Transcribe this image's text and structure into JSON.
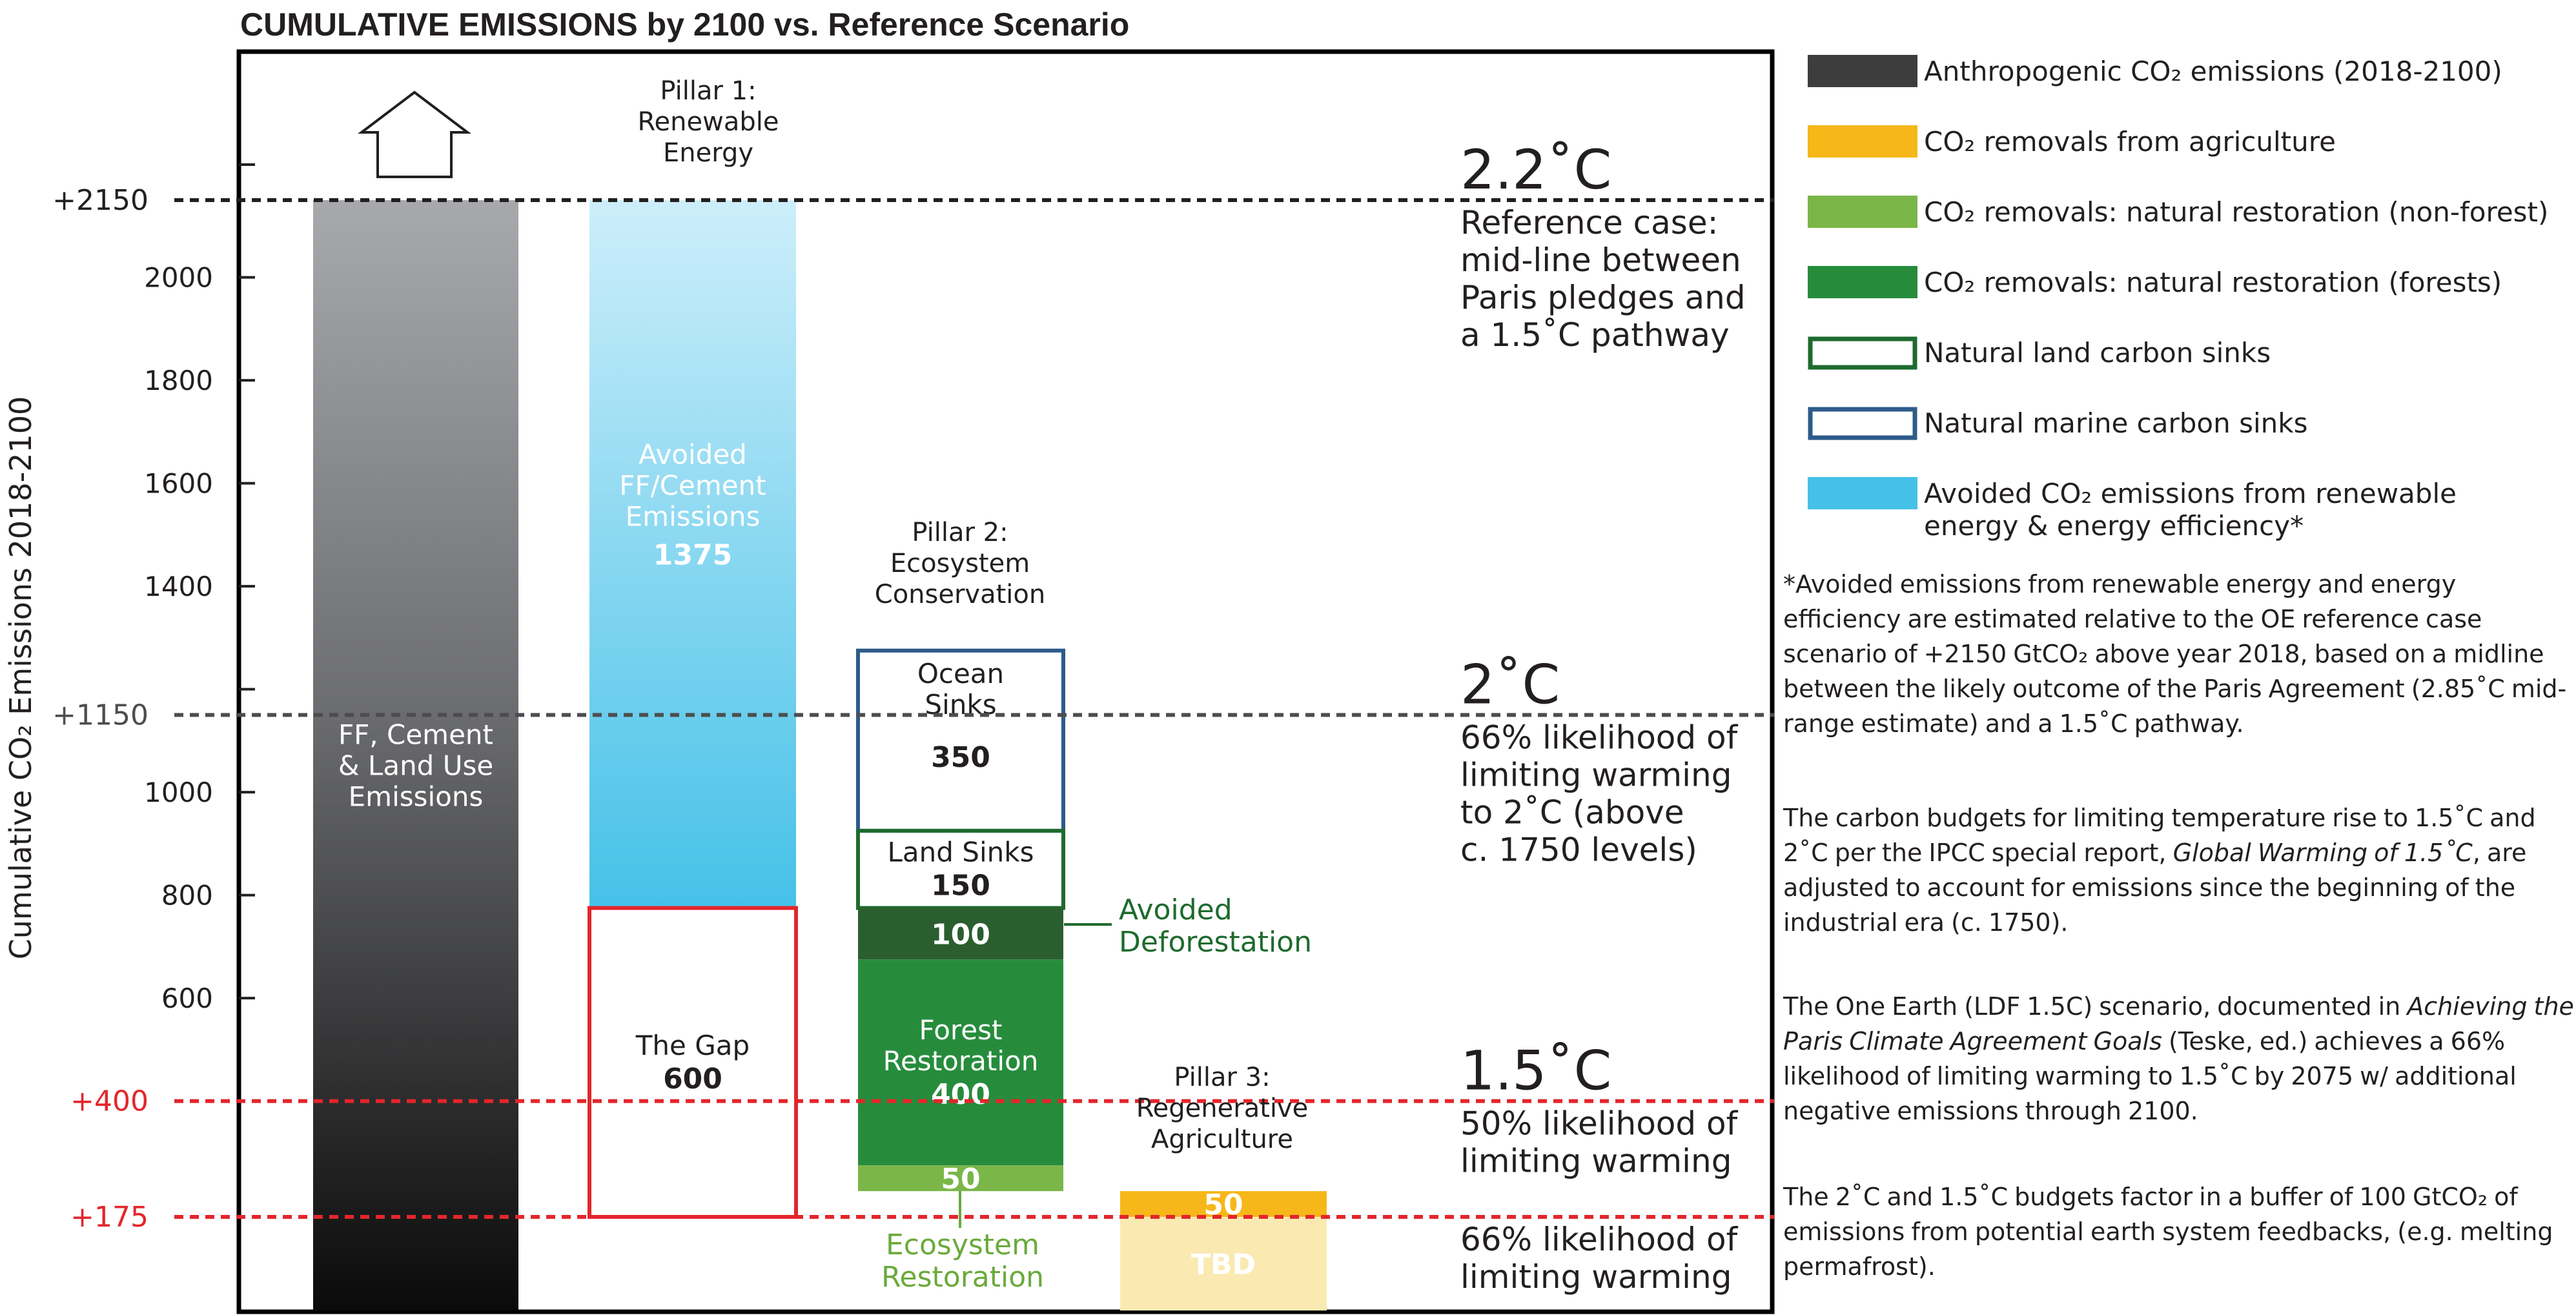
{
  "chart_data": {
    "type": "bar",
    "title": "CUMULATIVE EMISSIONS by 2100 vs. Reference Scenario",
    "ylabel": "Cumulative CO₂ Emissions 2018-2100",
    "ylim": [
      -175,
      2350
    ],
    "y_ticks": [
      600,
      800,
      1000,
      1200,
      1400,
      1600,
      1800,
      2000
    ],
    "y_tick_labels": [
      "600",
      "800",
      "1000",
      "",
      "1400",
      "1600",
      "1800",
      "2000"
    ],
    "reference_lines": [
      {
        "value": 2150,
        "label": "+2150",
        "color": "#231f20",
        "heading": "2.2˚C",
        "text": "Reference case:\nmid-line between\nParis pledges and\na 1.5˚C pathway"
      },
      {
        "value": 1150,
        "label": "+1150",
        "color": "#4d4d4f",
        "heading": "2˚C",
        "text": "66% likelihood of\nlimiting warming\nto 2˚C (above\nc. 1750 levels)"
      },
      {
        "value": 400,
        "label": "+400",
        "color": "#e3262b",
        "heading": "1.5˚C",
        "text": "50% likelihood of\nlimiting warming"
      },
      {
        "value": 175,
        "label": "+175",
        "color": "#e3262b",
        "heading": "",
        "text": "66% likelihood of\nlimiting warming"
      }
    ],
    "columns": [
      {
        "heading": "",
        "segments": [
          {
            "label": "FF, Cement\n& Land Use\nEmissions",
            "value": "",
            "start": -175,
            "end": 2150,
            "style": "gradient",
            "color": "#4a4a4a"
          }
        ]
      },
      {
        "heading": "Pillar 1:\nRenewable\nEnergy",
        "segments": [
          {
            "label": "Avoided\nFF/Cement\nEmissions",
            "value": "1375",
            "start": 775,
            "end": 2150,
            "style": "gradient-blue",
            "color": "#45c1e8"
          },
          {
            "label": "The Gap",
            "value": "600",
            "start": 175,
            "end": 775,
            "style": "outline",
            "color": "#e3262b"
          }
        ]
      },
      {
        "heading": "Pillar 2:\nEcosystem\nConservation",
        "segments": [
          {
            "label": "Ocean\nSinks",
            "value": "350",
            "start": 925,
            "end": 1275,
            "style": "outline",
            "color": "#2d5b8a"
          },
          {
            "label": "Land Sinks",
            "value": "150",
            "start": 775,
            "end": 925,
            "style": "outline",
            "color": "#1e6b2e"
          },
          {
            "label": "",
            "value": "100",
            "start": 675,
            "end": 775,
            "style": "fill",
            "color": "#2b5e2e"
          },
          {
            "label": "Forest\nRestoration",
            "value": "400",
            "start": 275,
            "end": 675,
            "style": "fill",
            "color": "#268c3c"
          },
          {
            "label": "",
            "value": "50",
            "start": 225,
            "end": 275,
            "style": "fill",
            "color": "#7ab648"
          }
        ]
      },
      {
        "heading": "Pillar 3:\nRegenerative\nAgriculture",
        "segments": [
          {
            "label": "",
            "value": "50",
            "start": 175,
            "end": 225,
            "style": "fill",
            "color": "#f6b719"
          },
          {
            "label": "",
            "value": "TBD",
            "start": -175,
            "end": 175,
            "style": "fill",
            "color": "#faeab1"
          }
        ]
      }
    ],
    "callouts": [
      {
        "text": "Avoided\nDeforestation",
        "color": "#1e6b2e"
      },
      {
        "text": "Ecosystem\nRestoration",
        "color": "#6aaa3c"
      }
    ],
    "legend": {
      "position": "right",
      "entries": [
        {
          "label": "Anthropogenic CO₂ emissions (2018-2100)",
          "swatch": "fill",
          "color": "#3d3d3d"
        },
        {
          "label": "CO₂ removals from agriculture",
          "swatch": "fill",
          "color": "#f6b719"
        },
        {
          "label": "CO₂ removals: natural restoration (non-forest)",
          "swatch": "fill",
          "color": "#7ab648"
        },
        {
          "label": "CO₂ removals: natural restoration (forests)",
          "swatch": "fill",
          "color": "#268c3c"
        },
        {
          "label": "Natural land carbon sinks",
          "swatch": "outline",
          "color": "#1e6b2e"
        },
        {
          "label": "Natural marine carbon sinks",
          "swatch": "outline",
          "color": "#2d5b8a"
        },
        {
          "label": "Avoided CO₂ emissions from renewable\nenergy & energy efficiency*",
          "swatch": "fill",
          "color": "#45c1e8"
        }
      ]
    }
  },
  "notes": {
    "note1": "*Avoided emissions from renewable energy and energy efficiency are estimated relative to the OE reference case scenario of +2150 GtCO₂ above year 2018, based on a midline between the likely outcome of the Paris Agreement (2.85˚C mid-range estimate) and a 1.5˚C pathway.",
    "note2_a": "The carbon budgets for limiting temperature rise to 1.5˚C and 2˚C per the IPCC special report, ",
    "note2_em": "Global Warming of 1.5˚C",
    "note2_b": ", are adjusted to account for emissions since the beginning of the industrial era (c. 1750).",
    "note3_a": "The One Earth (LDF 1.5C) scenario, documented in ",
    "note3_em": "Achieving the Paris Climate Agreement Goals",
    "note3_b": " (Teske, ed.) achieves a 66% likelihood of limiting warming to 1.5˚C by 2075 w/ additional negative emissions through 2100.",
    "note4": "The 2˚C and 1.5˚C budgets factor in a buffer of 100 GtCO₂ of emissions from potential earth system feedbacks, (e.g. melting permafrost)."
  }
}
